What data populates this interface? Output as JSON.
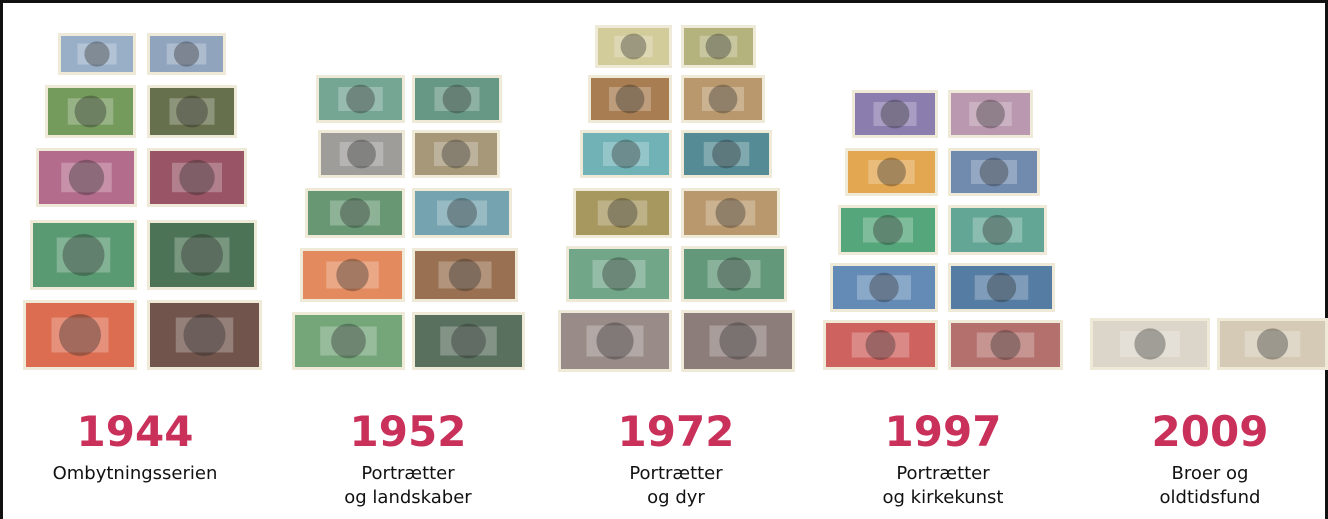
{
  "series": [
    {
      "year": "1944",
      "caption": [
        "Ombytningsserien"
      ]
    },
    {
      "year": "1952",
      "caption": [
        "Portrætter",
        "og landskaber"
      ]
    },
    {
      "year": "1972",
      "caption": [
        "Portrætter",
        "og dyr"
      ]
    },
    {
      "year": "1997",
      "caption": [
        "Portrætter",
        "og kirkekunst"
      ]
    },
    {
      "year": "2009",
      "caption": [
        "Broer og",
        "oldtidsfund"
      ]
    }
  ]
}
